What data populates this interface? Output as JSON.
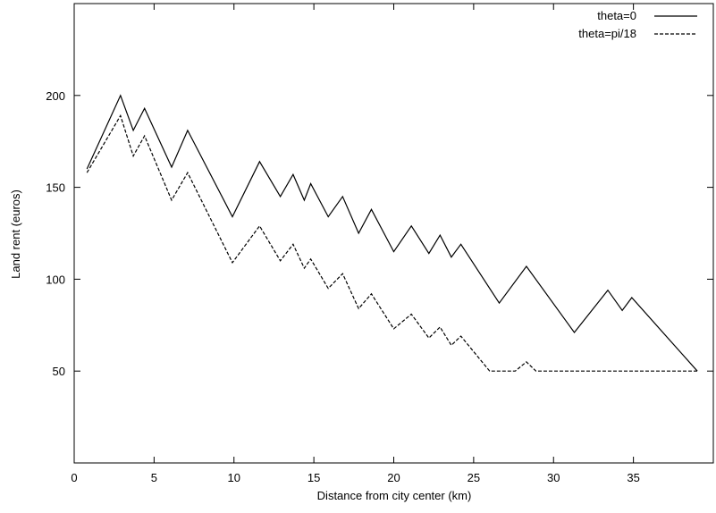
{
  "chart_data": {
    "type": "line",
    "title": "",
    "xlabel": "Distance from city center (km)",
    "ylabel": "Land rent (euros)",
    "xlim": [
      0,
      40
    ],
    "ylim": [
      0,
      250
    ],
    "xticks": [
      0,
      5,
      10,
      15,
      20,
      25,
      30,
      35
    ],
    "yticks": [
      50,
      100,
      150,
      200
    ],
    "grid": false,
    "legend_position": "top-right",
    "series": [
      {
        "name": "theta=0",
        "style": "solid",
        "color": "#000000",
        "x": [
          0.8,
          2.9,
          3.7,
          4.4,
          6.1,
          7.1,
          9.9,
          11.6,
          12.9,
          13.7,
          14.4,
          14.8,
          15.9,
          16.8,
          17.8,
          18.6,
          20.0,
          21.1,
          22.2,
          22.9,
          23.6,
          24.2,
          26.6,
          28.3,
          31.3,
          33.4,
          34.3,
          34.9,
          39.0
        ],
        "y": [
          160,
          200,
          181,
          193,
          161,
          181,
          134,
          164,
          145,
          157,
          143,
          152,
          134,
          145,
          125,
          138,
          115,
          129,
          114,
          124,
          112,
          119,
          87,
          107,
          71,
          94,
          83,
          90,
          50
        ]
      },
      {
        "name": "theta=pi/18",
        "style": "dashed",
        "color": "#000000",
        "x": [
          0.8,
          2.9,
          3.7,
          4.4,
          6.1,
          7.1,
          9.9,
          11.6,
          12.9,
          13.7,
          14.4,
          14.8,
          15.9,
          16.8,
          17.8,
          18.6,
          20.0,
          21.1,
          22.2,
          22.9,
          23.6,
          24.2,
          26.0,
          27.6,
          28.3,
          28.9,
          39.0
        ],
        "y": [
          158,
          189,
          167,
          178,
          143,
          158,
          109,
          129,
          110,
          119,
          106,
          111,
          95,
          103,
          84,
          92,
          73,
          81,
          68,
          74,
          64,
          69,
          50,
          50,
          55,
          50,
          50
        ]
      }
    ]
  }
}
